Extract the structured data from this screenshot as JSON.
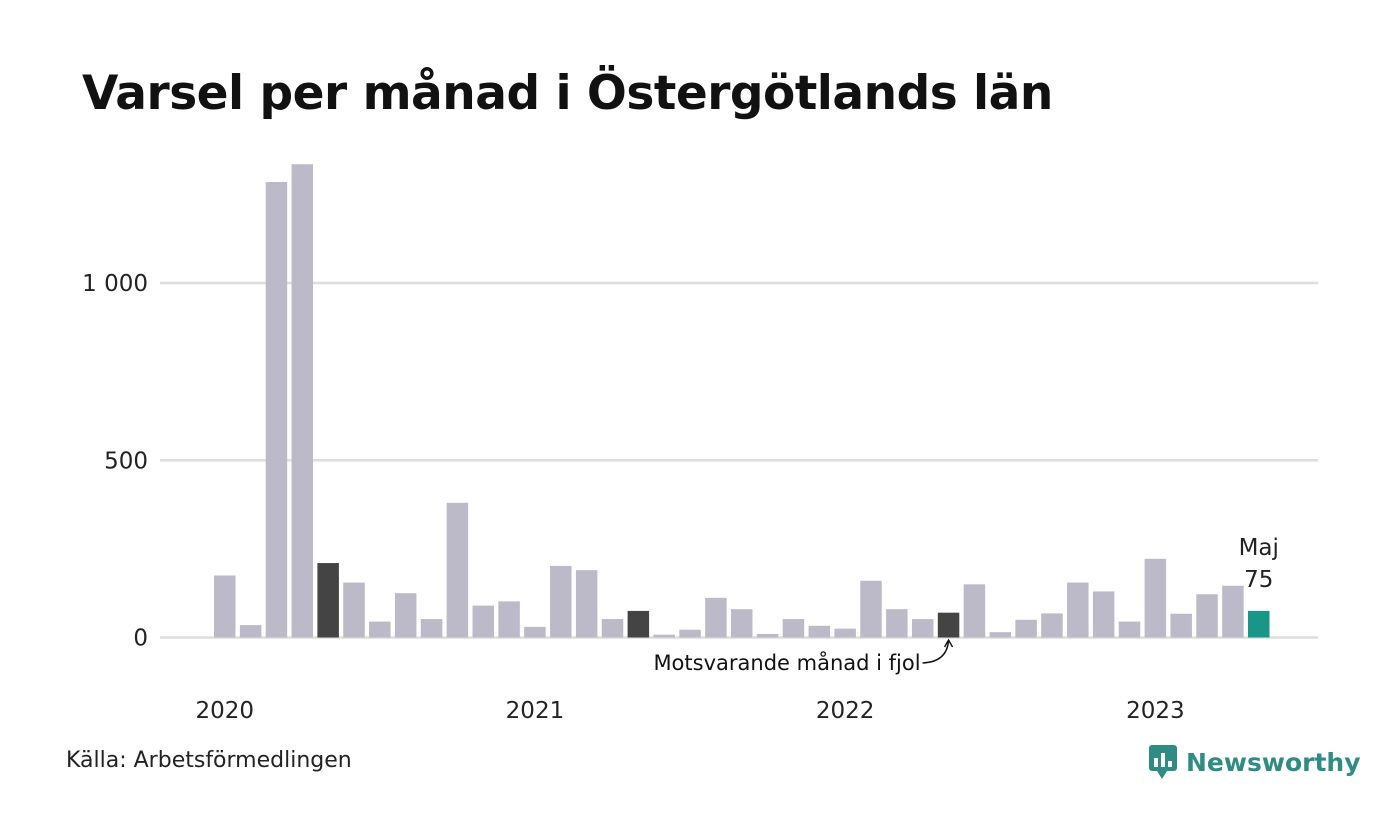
{
  "title": "Varsel per månad i Östergötlands län",
  "source": "Källa: Arbetsförmedlingen",
  "brand": {
    "name": "Newsworthy",
    "icon": "newsworthy-logo-icon",
    "color": "#2f8c84"
  },
  "chart_data": {
    "type": "bar",
    "title": "Varsel per månad i Östergötlands län",
    "xlabel": "",
    "ylabel": "",
    "ylim": [
      0,
      1350
    ],
    "y_ticks": [
      0,
      500,
      1000
    ],
    "y_tick_labels": [
      "0",
      "500",
      "1 000"
    ],
    "x_tick_labels": [
      {
        "label": "2020",
        "month_index": 0
      },
      {
        "label": "2021",
        "month_index": 12
      },
      {
        "label": "2022",
        "month_index": 24
      },
      {
        "label": "2023",
        "month_index": 36
      }
    ],
    "grid": true,
    "months": [
      "2020-01",
      "2020-02",
      "2020-03",
      "2020-04",
      "2020-05",
      "2020-06",
      "2020-07",
      "2020-08",
      "2020-09",
      "2020-10",
      "2020-11",
      "2020-12",
      "2021-01",
      "2021-02",
      "2021-03",
      "2021-04",
      "2021-05",
      "2021-06",
      "2021-07",
      "2021-08",
      "2021-09",
      "2021-10",
      "2021-11",
      "2021-12",
      "2022-01",
      "2022-02",
      "2022-03",
      "2022-04",
      "2022-05",
      "2022-06",
      "2022-07",
      "2022-08",
      "2022-09",
      "2022-10",
      "2022-11",
      "2022-12",
      "2023-01",
      "2023-02",
      "2023-03",
      "2023-04",
      "2023-05"
    ],
    "values": [
      175,
      35,
      1285,
      1335,
      210,
      155,
      45,
      125,
      52,
      380,
      90,
      102,
      30,
      202,
      190,
      52,
      75,
      8,
      22,
      112,
      80,
      10,
      52,
      33,
      25,
      160,
      80,
      52,
      70,
      150,
      15,
      50,
      68,
      155,
      130,
      45,
      222,
      67,
      122,
      146,
      75
    ],
    "highlight_same_month_indices": [
      4,
      16,
      28
    ],
    "current_index": 40,
    "colors": {
      "bar": "#bcbac8",
      "same_month": "#444444",
      "current": "#1a9688",
      "grid": "#dddddd"
    },
    "annotations": [
      {
        "text": "Maj",
        "target_index": 40
      },
      {
        "text": "75",
        "target_index": 40
      },
      {
        "text": "Motsvarande månad i fjol",
        "target_index": 28
      }
    ]
  }
}
